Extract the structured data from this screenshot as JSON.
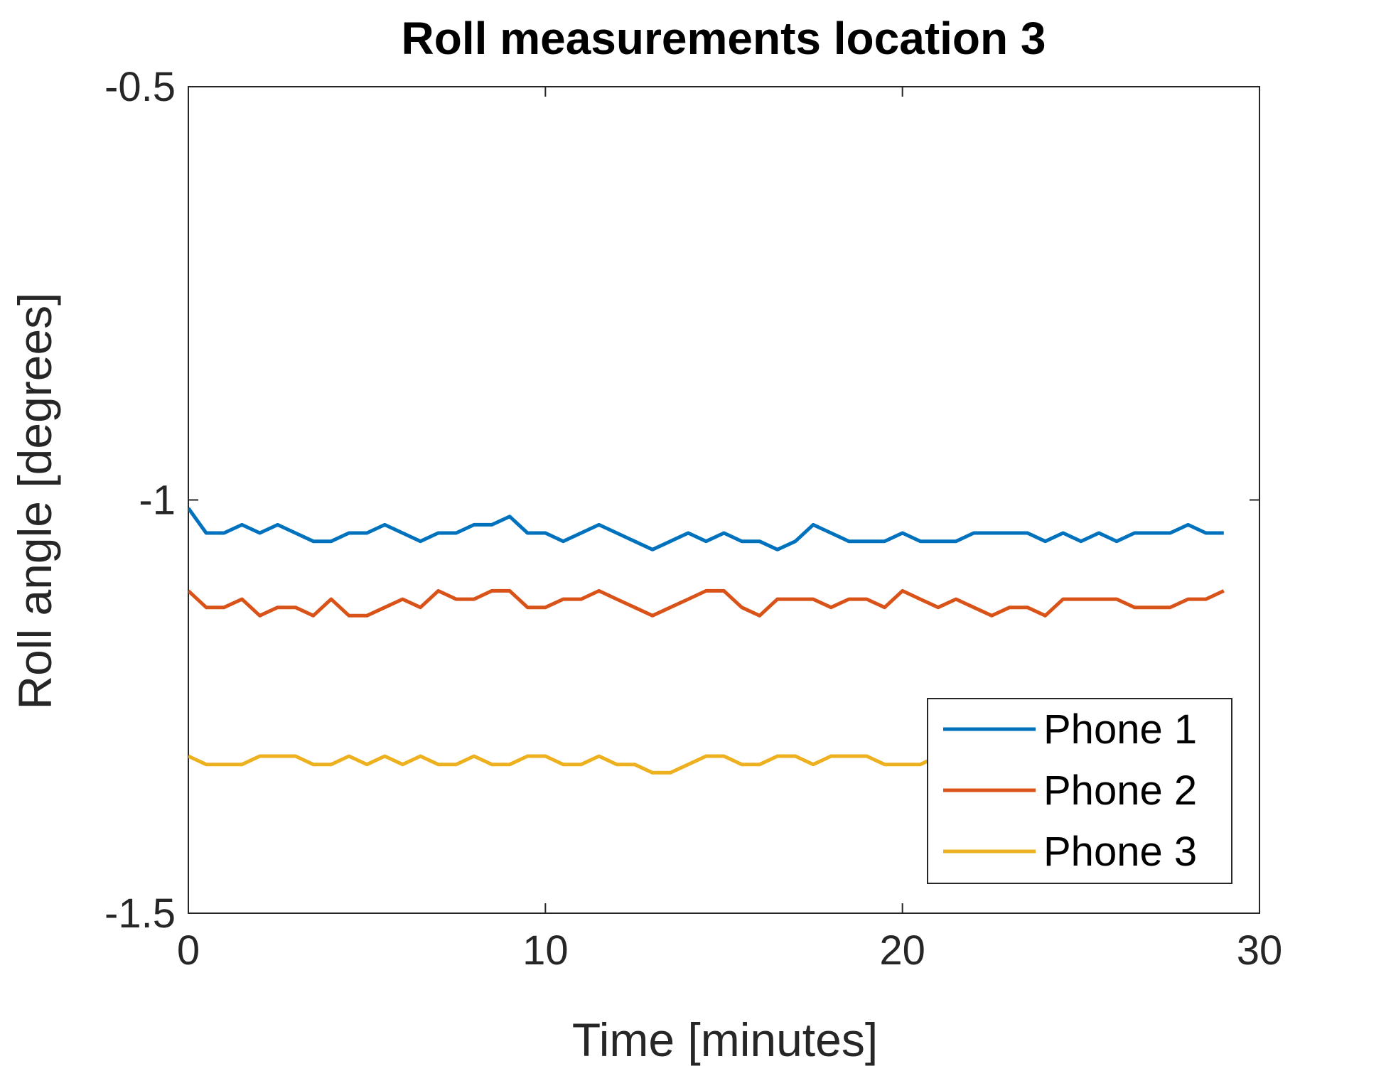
{
  "chart_data": {
    "type": "line",
    "title": "Roll measurements location 3",
    "xlabel": "Time [minutes]",
    "ylabel": "Roll angle [degrees]",
    "xlim": [
      0,
      30
    ],
    "ylim": [
      -1.5,
      -0.5
    ],
    "xticks": [
      0,
      10,
      20,
      30
    ],
    "yticks": [
      -1.5,
      -1,
      -0.5
    ],
    "xtick_labels": [
      "0",
      "10",
      "20",
      "30"
    ],
    "ytick_labels": [
      "-1.5",
      "-1",
      "-0.5"
    ],
    "grid": false,
    "legend_position": "bottom-right",
    "series": [
      {
        "name": "Phone 1",
        "color": "#0072BD",
        "x": [
          0,
          0.5,
          1,
          1.5,
          2,
          2.5,
          3,
          3.5,
          4,
          4.5,
          5,
          5.5,
          6,
          6.5,
          7,
          7.5,
          8,
          8.5,
          9,
          9.5,
          10,
          10.5,
          11,
          11.5,
          12,
          12.5,
          13,
          13.5,
          14,
          14.5,
          15,
          15.5,
          16,
          16.5,
          17,
          17.5,
          18,
          18.5,
          19,
          19.5,
          20,
          20.5,
          21,
          21.5,
          22,
          22.5,
          23,
          23.5,
          24,
          24.5,
          25,
          25.5,
          26,
          26.5,
          27,
          27.5,
          28,
          28.5,
          29
        ],
        "y": [
          -1.01,
          -1.04,
          -1.04,
          -1.03,
          -1.04,
          -1.03,
          -1.04,
          -1.05,
          -1.05,
          -1.04,
          -1.04,
          -1.03,
          -1.04,
          -1.05,
          -1.04,
          -1.04,
          -1.03,
          -1.03,
          -1.02,
          -1.04,
          -1.04,
          -1.05,
          -1.04,
          -1.03,
          -1.04,
          -1.05,
          -1.06,
          -1.05,
          -1.04,
          -1.05,
          -1.04,
          -1.05,
          -1.05,
          -1.06,
          -1.05,
          -1.03,
          -1.04,
          -1.05,
          -1.05,
          -1.05,
          -1.04,
          -1.05,
          -1.05,
          -1.05,
          -1.04,
          -1.04,
          -1.04,
          -1.04,
          -1.05,
          -1.04,
          -1.05,
          -1.04,
          -1.05,
          -1.04,
          -1.04,
          -1.04,
          -1.03,
          -1.04,
          -1.04
        ]
      },
      {
        "name": "Phone 2",
        "color": "#D95319",
        "x": [
          0,
          0.5,
          1,
          1.5,
          2,
          2.5,
          3,
          3.5,
          4,
          4.5,
          5,
          5.5,
          6,
          6.5,
          7,
          7.5,
          8,
          8.5,
          9,
          9.5,
          10,
          10.5,
          11,
          11.5,
          12,
          12.5,
          13,
          13.5,
          14,
          14.5,
          15,
          15.5,
          16,
          16.5,
          17,
          17.5,
          18,
          18.5,
          19,
          19.5,
          20,
          20.5,
          21,
          21.5,
          22,
          22.5,
          23,
          23.5,
          24,
          24.5,
          25,
          25.5,
          26,
          26.5,
          27,
          27.5,
          28,
          28.5,
          29
        ],
        "y": [
          -1.11,
          -1.13,
          -1.13,
          -1.12,
          -1.14,
          -1.13,
          -1.13,
          -1.14,
          -1.12,
          -1.14,
          -1.14,
          -1.13,
          -1.12,
          -1.13,
          -1.11,
          -1.12,
          -1.12,
          -1.11,
          -1.11,
          -1.13,
          -1.13,
          -1.12,
          -1.12,
          -1.11,
          -1.12,
          -1.13,
          -1.14,
          -1.13,
          -1.12,
          -1.11,
          -1.11,
          -1.13,
          -1.14,
          -1.12,
          -1.12,
          -1.12,
          -1.13,
          -1.12,
          -1.12,
          -1.13,
          -1.11,
          -1.12,
          -1.13,
          -1.12,
          -1.13,
          -1.14,
          -1.13,
          -1.13,
          -1.14,
          -1.12,
          -1.12,
          -1.12,
          -1.12,
          -1.13,
          -1.13,
          -1.13,
          -1.12,
          -1.12,
          -1.11
        ]
      },
      {
        "name": "Phone 3",
        "color": "#EDB120",
        "x": [
          0,
          0.5,
          1,
          1.5,
          2,
          2.5,
          3,
          3.5,
          4,
          4.5,
          5,
          5.5,
          6,
          6.5,
          7,
          7.5,
          8,
          8.5,
          9,
          9.5,
          10,
          10.5,
          11,
          11.5,
          12,
          12.5,
          13,
          13.5,
          14,
          14.5,
          15,
          15.5,
          16,
          16.5,
          17,
          17.5,
          18,
          18.5,
          19,
          19.5,
          20,
          20.5,
          21,
          21.5,
          22,
          22.5,
          23,
          23.5,
          24,
          24.5,
          25,
          25.5,
          26,
          26.5,
          27,
          27.5,
          28,
          28.5,
          29
        ],
        "y": [
          -1.31,
          -1.32,
          -1.32,
          -1.32,
          -1.31,
          -1.31,
          -1.31,
          -1.32,
          -1.32,
          -1.31,
          -1.32,
          -1.31,
          -1.32,
          -1.31,
          -1.32,
          -1.32,
          -1.31,
          -1.32,
          -1.32,
          -1.31,
          -1.31,
          -1.32,
          -1.32,
          -1.31,
          -1.32,
          -1.32,
          -1.33,
          -1.33,
          -1.32,
          -1.31,
          -1.31,
          -1.32,
          -1.32,
          -1.31,
          -1.31,
          -1.32,
          -1.31,
          -1.31,
          -1.31,
          -1.32,
          -1.32,
          -1.32,
          -1.31,
          -1.32,
          -1.32,
          -1.31,
          -1.32,
          -1.31,
          -1.32,
          -1.32,
          -1.31,
          -1.32,
          -1.31,
          -1.31,
          -1.32,
          -1.31,
          -1.32,
          -1.32,
          -1.32
        ]
      }
    ]
  }
}
